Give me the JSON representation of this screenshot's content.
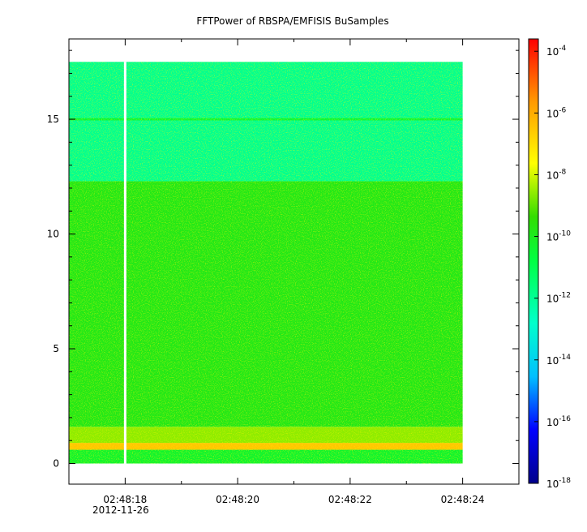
{
  "chart_data": {
    "type": "heatmap",
    "title": "FFTPower of RBSPA/EMFISIS  BuSamples",
    "xlabel": "",
    "ylabel": "",
    "x_tick_labels": [
      "02:48:18",
      "02:48:20",
      "02:48:22",
      "02:48:24"
    ],
    "x_date_label": "2012-11-26",
    "x_range": [
      "02:48:17.0",
      "02:48:25.0"
    ],
    "y_ticks": [
      0,
      5,
      10,
      15
    ],
    "y_tick_labels": [
      "0",
      "5",
      "10",
      "15"
    ],
    "ylim": [
      -0.9,
      18.5
    ],
    "data_extent": {
      "x": [
        "02:48:17.0",
        "02:48:24.0"
      ],
      "y": [
        0,
        17.5
      ]
    },
    "data_gap": {
      "x": "02:48:18.0"
    },
    "bands": [
      {
        "y": [
          0.0,
          0.6
        ],
        "level": -10.2
      },
      {
        "y": [
          0.6,
          0.9
        ],
        "level": -6.2,
        "note": "intense narrow band"
      },
      {
        "y": [
          0.9,
          1.6
        ],
        "level": -8.2
      },
      {
        "y": [
          1.6,
          12.3
        ],
        "level": -9.6
      },
      {
        "y": [
          12.3,
          17.5
        ],
        "level": -11.8
      },
      {
        "y": [
          14.95,
          15.05
        ],
        "level": -10.4,
        "note": "thin line"
      }
    ],
    "colorbar": {
      "scale": "log",
      "range": [
        -18,
        -3.6
      ],
      "ticks": [
        -4,
        -6,
        -8,
        -10,
        -12,
        -14,
        -16,
        -18
      ],
      "tick_labels": [
        {
          "base": "10",
          "exp": "-4"
        },
        {
          "base": "10",
          "exp": "-6"
        },
        {
          "base": "10",
          "exp": "-8"
        },
        {
          "base": "10",
          "exp": "-10"
        },
        {
          "base": "10",
          "exp": "-12"
        },
        {
          "base": "10",
          "exp": "-14"
        },
        {
          "base": "10",
          "exp": "-16"
        },
        {
          "base": "10",
          "exp": "-18"
        }
      ],
      "colormap": [
        "#00008b",
        "#0000ff",
        "#00bfff",
        "#00ffcc",
        "#00ff44",
        "#33dd00",
        "#ffff00",
        "#ff9900",
        "#ff0000"
      ]
    }
  }
}
